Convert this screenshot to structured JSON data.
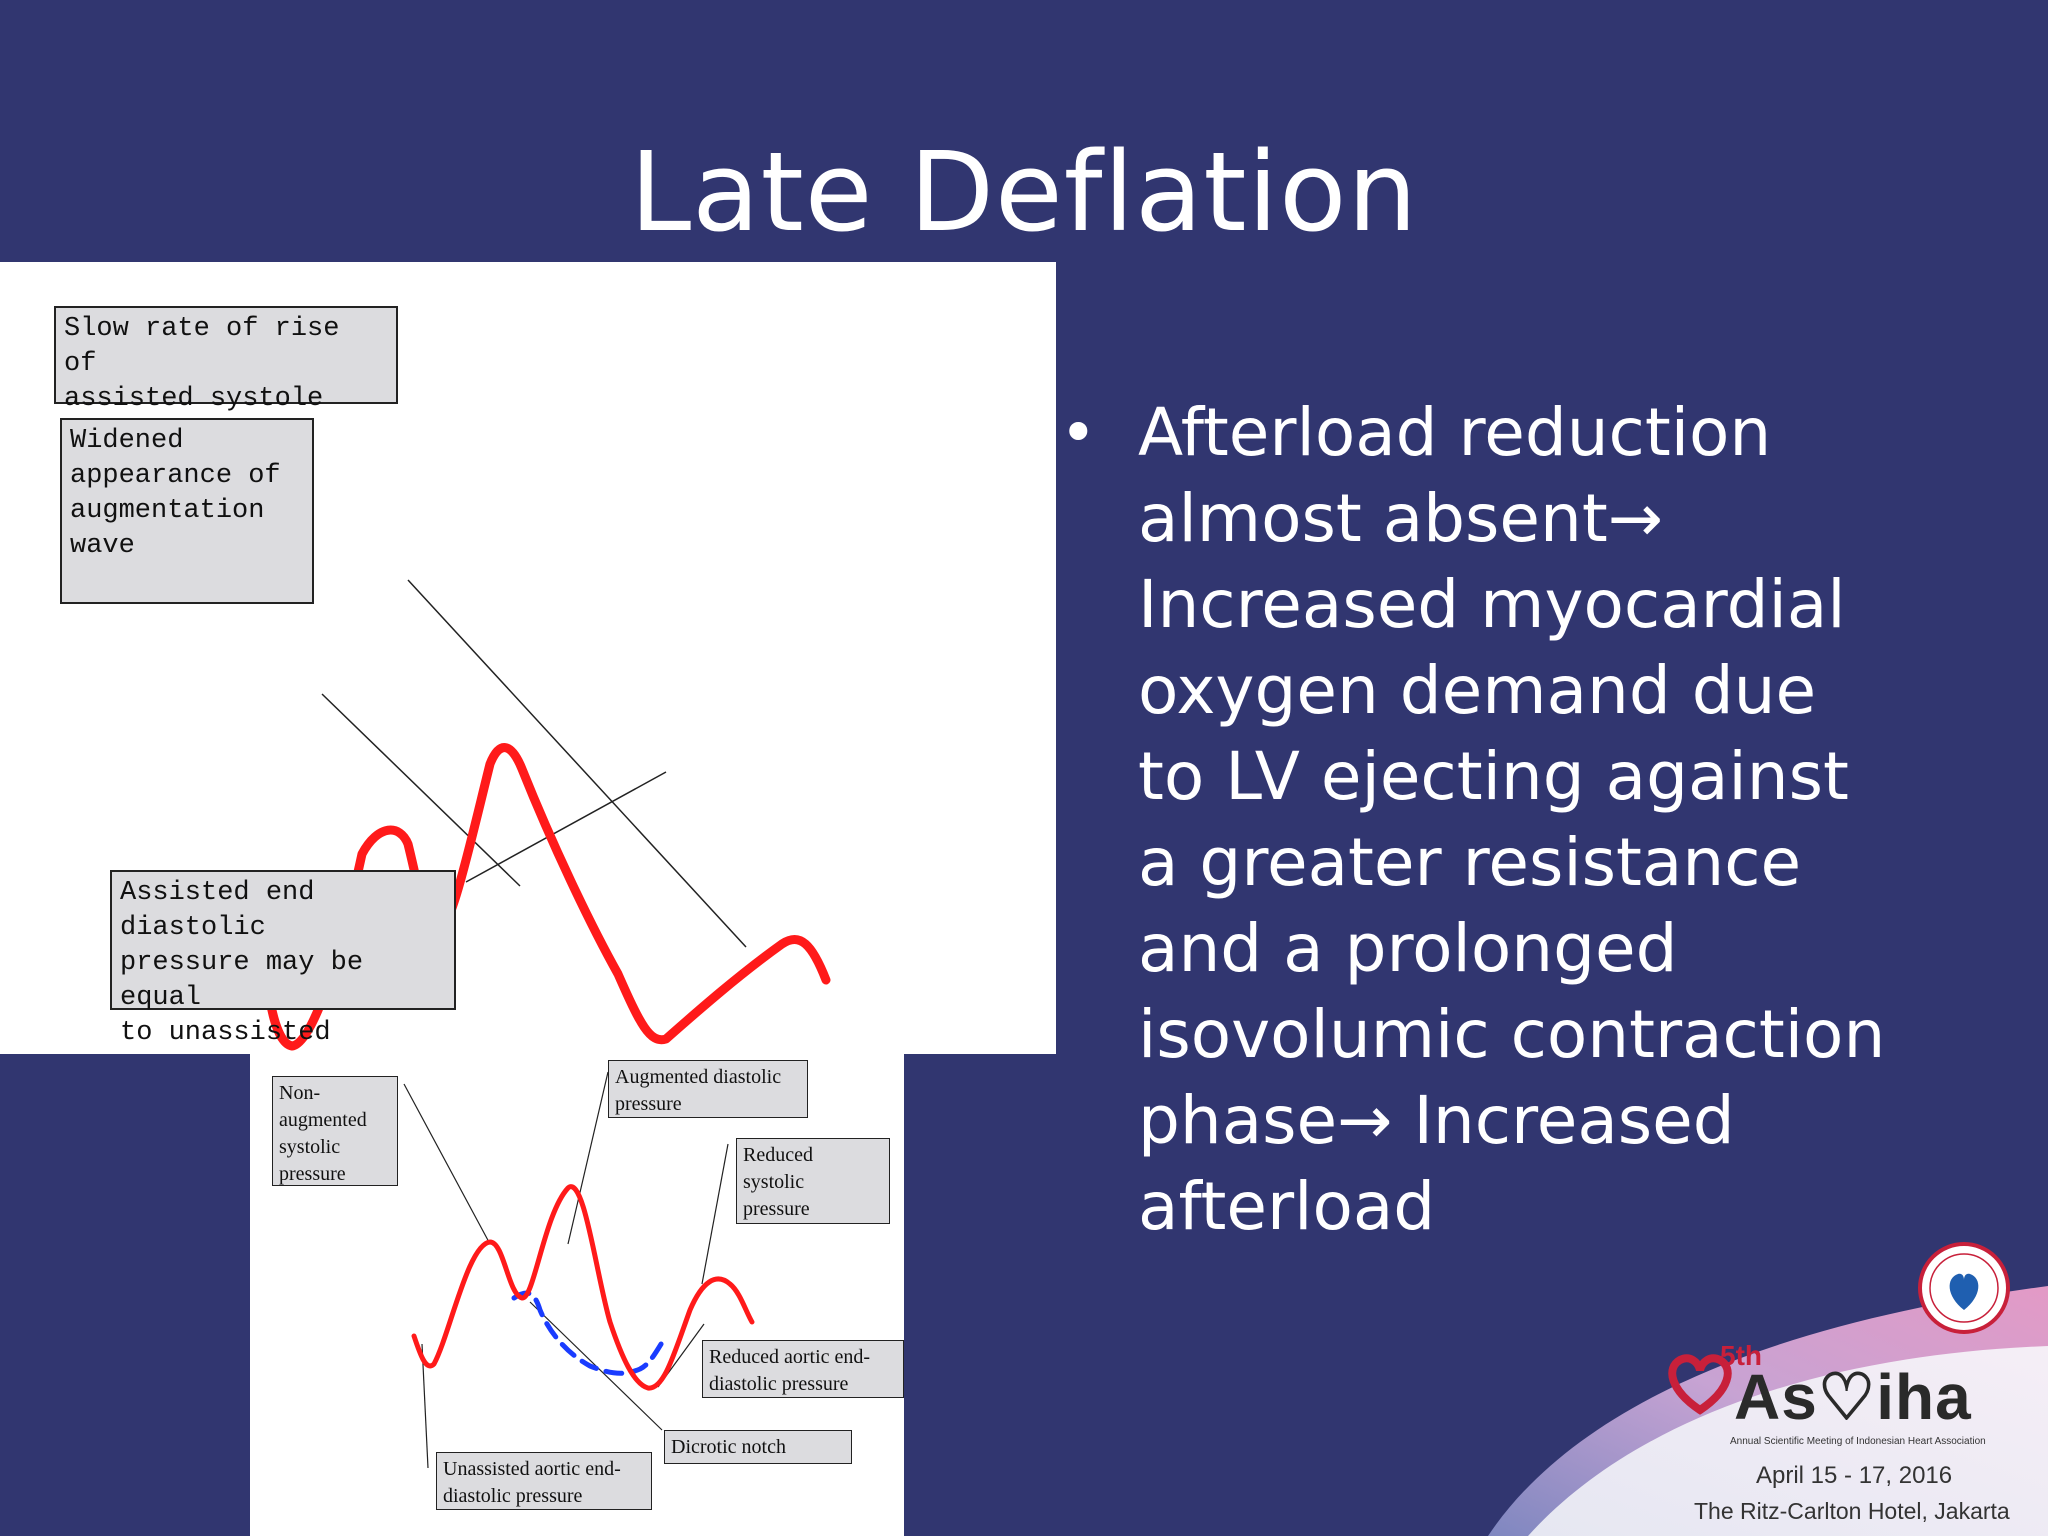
{
  "slide": {
    "title": "Late Deflation",
    "bullet": "Afterload reduction\nalmost absent→\nIncreased myocardial\noxygen demand due\nto LV ejecting against\na greater resistance\nand a prolonged\nisovolumic contraction\nphase→ Increased\nafterload",
    "bullet_symbol": "•"
  },
  "top_diagram": {
    "callouts": {
      "slow_rise": "Slow rate of rise of\nassisted systole",
      "widened": "Widened\nappearance of\naugmentation\nwave",
      "end_diastolic": "Assisted end diastolic\npressure may be equal\nto unassisted"
    },
    "waveform_color": "#ff1a1a"
  },
  "bottom_diagram": {
    "callouts": {
      "non_augmented": "Non-\naugmented\nsystolic\npressure",
      "augmented_diastolic": "Augmented diastolic\npressure",
      "reduced_systolic": "Reduced\nsystolic\npressure",
      "reduced_aortic": "Reduced aortic end-\ndiastolic pressure",
      "dicrotic": "Dicrotic notch",
      "unassisted_aortic": "Unassisted aortic end-\ndiastolic pressure"
    },
    "assisted_color": "#ff1a1a",
    "unassisted_color": "#1a3cff"
  },
  "branding": {
    "logo_word": "As♡iha",
    "logo_sup": "5th",
    "logo_subtitle": "Annual Scientific Meeting of Indonesian Heart Association",
    "date": "April 15 - 17, 2016",
    "venue": "The Ritz-Carlton Hotel, Jakarta",
    "accent": "#c8203a"
  }
}
